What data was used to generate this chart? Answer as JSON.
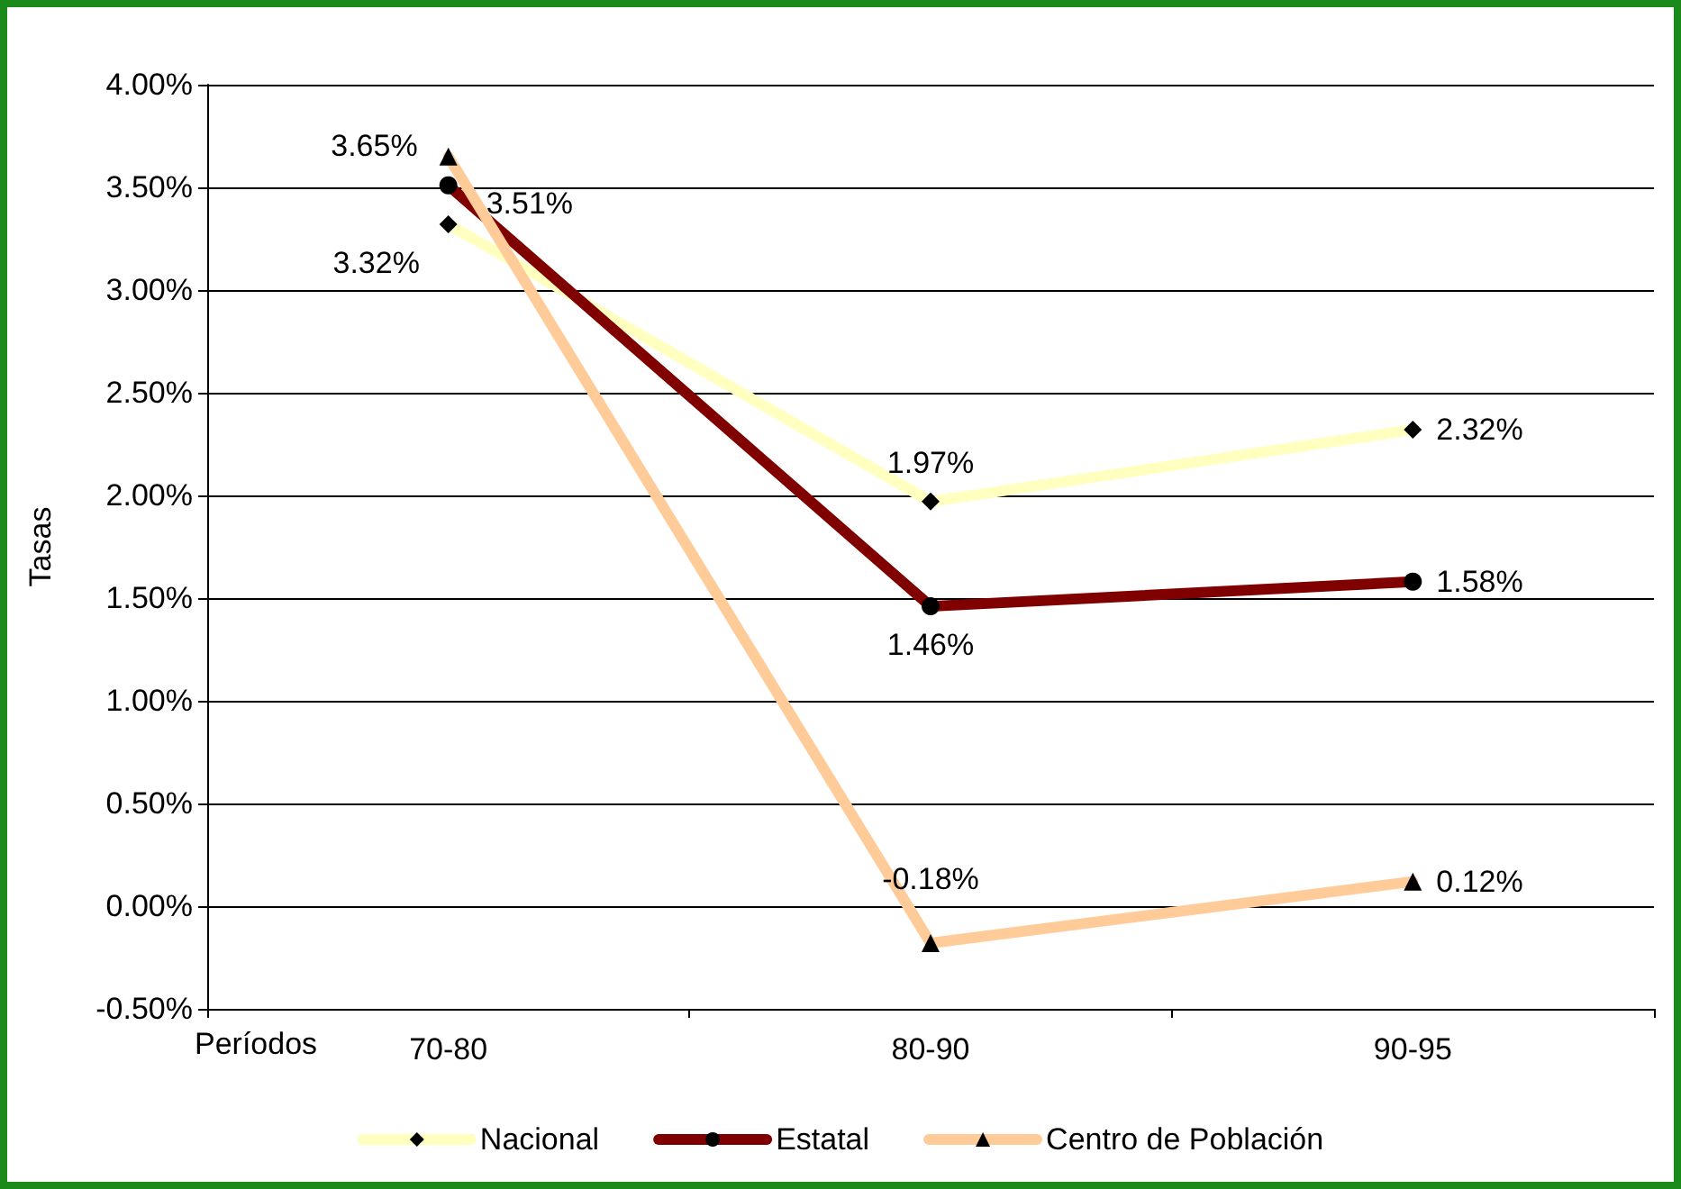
{
  "chart_data": {
    "type": "line",
    "ylabel": "Tasas",
    "xlabel": "Períodos",
    "categories": [
      "70-80",
      "80-90",
      "90-95"
    ],
    "series": [
      {
        "name": "Nacional",
        "color": "#ffffc0",
        "marker": "diamond",
        "values": [
          3.32,
          1.97,
          2.32
        ],
        "value_labels": [
          "3.32%",
          "1.97%",
          "2.32%"
        ]
      },
      {
        "name": "Estatal",
        "color": "#800000",
        "marker": "circle",
        "values": [
          3.51,
          1.46,
          1.58
        ],
        "value_labels": [
          "3.51%",
          "1.46%",
          "1.58%"
        ]
      },
      {
        "name": "Centro de Población",
        "color": "#ffcc99",
        "marker": "triangle",
        "values": [
          3.65,
          -0.18,
          0.12
        ],
        "value_labels": [
          "3.65%",
          "-0.18%",
          "0.12%"
        ]
      }
    ],
    "ylim": [
      -0.5,
      4.0
    ],
    "yticks": [
      {
        "value": -0.5,
        "label": "-0.50%"
      },
      {
        "value": 0,
        "label": "0.00%"
      },
      {
        "value": 0.5,
        "label": "0.50%"
      },
      {
        "value": 1,
        "label": "1.00%"
      },
      {
        "value": 1.5,
        "label": "1.50%"
      },
      {
        "value": 2,
        "label": "2.00%"
      },
      {
        "value": 2.5,
        "label": "2.50%"
      },
      {
        "value": 3,
        "label": "3.00%"
      },
      {
        "value": 3.5,
        "label": "3.50%"
      },
      {
        "value": 4,
        "label": "4.00%"
      }
    ],
    "grid": "y",
    "legend": "bottom"
  }
}
